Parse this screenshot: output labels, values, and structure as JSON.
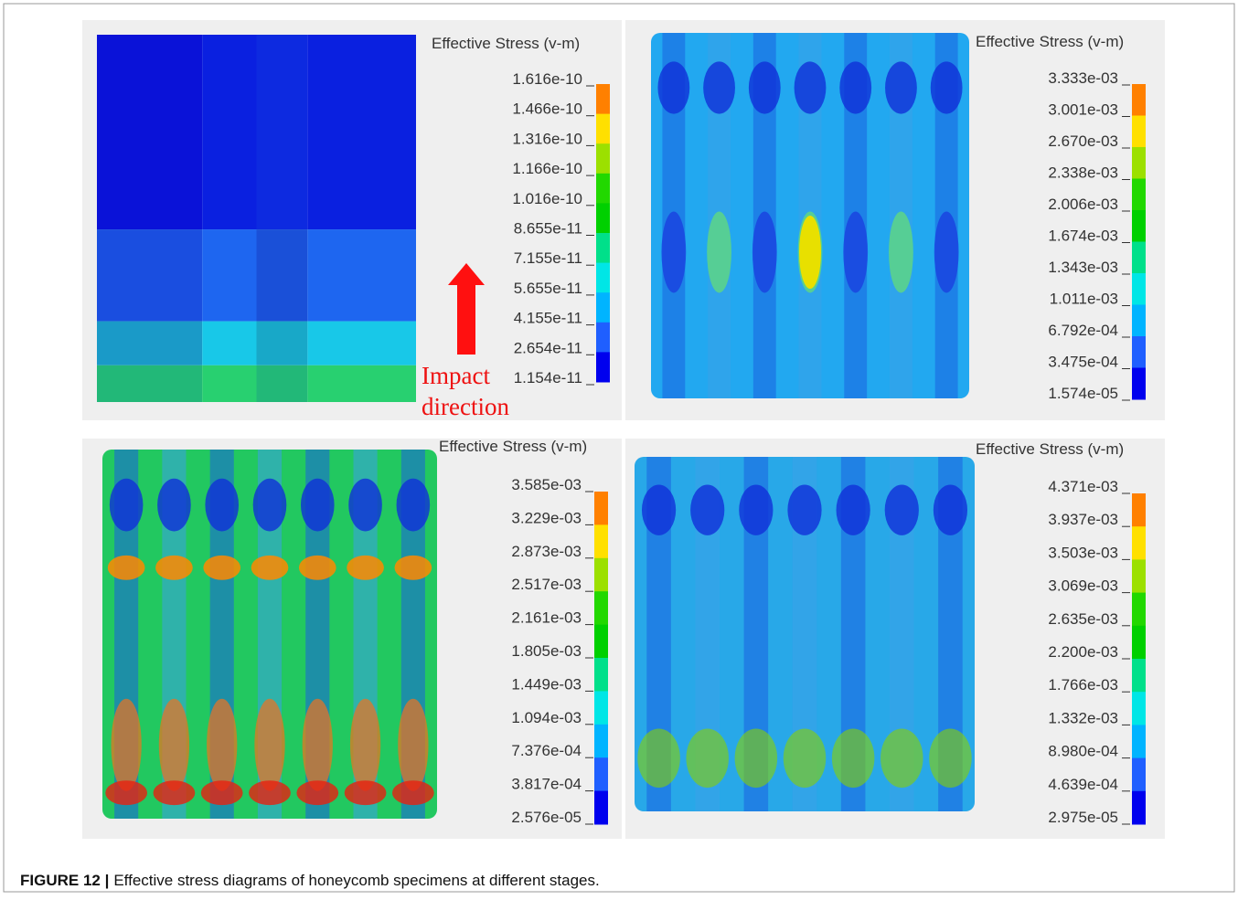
{
  "panels": [
    {
      "legend_title": "Effective Stress (v-m)",
      "scale_labels": [
        "1.616e-10",
        "1.466e-10",
        "1.316e-10",
        "1.166e-10",
        "1.016e-10",
        "8.655e-11",
        "7.155e-11",
        "5.655e-11",
        "4.155e-11",
        "2.654e-11",
        "1.154e-11"
      ]
    },
    {
      "legend_title": "Effective Stress (v-m)",
      "scale_labels": [
        "3.333e-03",
        "3.001e-03",
        "2.670e-03",
        "2.338e-03",
        "2.006e-03",
        "1.674e-03",
        "1.343e-03",
        "1.011e-03",
        "6.792e-04",
        "3.475e-04",
        "1.574e-05"
      ]
    },
    {
      "legend_title": "Effective Stress (v-m)",
      "scale_labels": [
        "3.585e-03",
        "3.229e-03",
        "2.873e-03",
        "2.517e-03",
        "2.161e-03",
        "1.805e-03",
        "1.449e-03",
        "1.094e-03",
        "7.376e-04",
        "3.817e-04",
        "2.576e-05"
      ]
    },
    {
      "legend_title": "Effective Stress (v-m)",
      "scale_labels": [
        "4.371e-03",
        "3.937e-03",
        "3.503e-03",
        "3.069e-03",
        "2.635e-03",
        "2.200e-03",
        "1.766e-03",
        "1.332e-03",
        "8.980e-04",
        "4.639e-04",
        "2.975e-05"
      ]
    }
  ],
  "annotation": [
    "Impact",
    "direction"
  ],
  "caption": {
    "label": "FIGURE 12 |",
    "text": "Effective stress diagrams of honeycomb specimens at different stages."
  }
}
